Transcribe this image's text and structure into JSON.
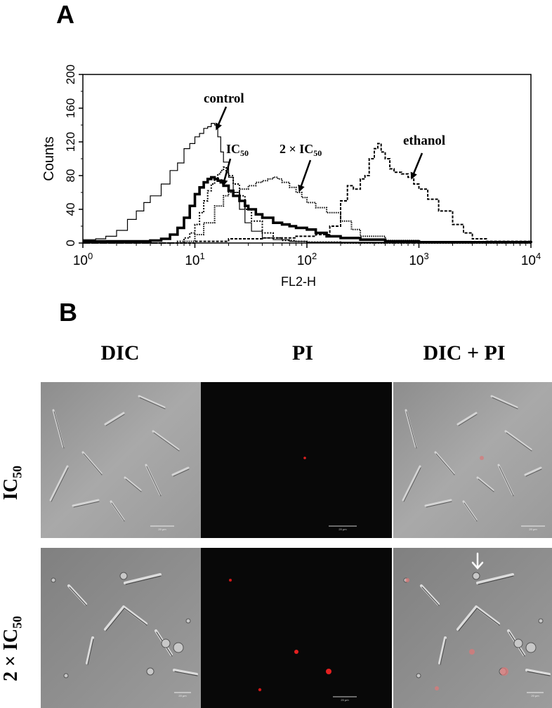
{
  "panel_a": {
    "label": "A"
  },
  "panel_b": {
    "label": "B",
    "columns": [
      "DIC",
      "PI",
      "DIC + PI"
    ],
    "rows": [
      {
        "label_main": "IC",
        "label_sub": "50"
      },
      {
        "label_main": "2 × IC",
        "label_sub": "50"
      }
    ],
    "scale_bar_text": "20 μm"
  },
  "chart_data": {
    "type": "line",
    "x_scale": "log",
    "xlabel": "FL2-H",
    "ylabel": "Counts",
    "xlim": [
      1,
      10000
    ],
    "ylim": [
      0,
      200
    ],
    "x_ticks": [
      {
        "base": "10",
        "exp": "0"
      },
      {
        "base": "10",
        "exp": "1"
      },
      {
        "base": "10",
        "exp": "2"
      },
      {
        "base": "10",
        "exp": "3"
      },
      {
        "base": "10",
        "exp": "4"
      }
    ],
    "y_ticks": [
      "0",
      "40",
      "80",
      "120",
      "160",
      "200"
    ],
    "annotations": [
      {
        "text": "control",
        "sub": ""
      },
      {
        "text": "IC",
        "sub": "50"
      },
      {
        "text": "2 × IC",
        "sub": "50"
      },
      {
        "text": "ethanol",
        "sub": ""
      }
    ],
    "series": [
      {
        "style": "thin-solid",
        "x": [
          1,
          1.3,
          1.6,
          2,
          2.5,
          3,
          3.5,
          4,
          5,
          6,
          7,
          8,
          9,
          10,
          11,
          12,
          13,
          14,
          15,
          16,
          17,
          18,
          20,
          22,
          25,
          28,
          32,
          40,
          50,
          70,
          100,
          200,
          500,
          1000,
          10000
        ],
        "y": [
          4,
          5,
          8,
          15,
          28,
          38,
          48,
          56,
          70,
          86,
          95,
          112,
          118,
          126,
          130,
          136,
          138,
          142,
          140,
          126,
          108,
          96,
          78,
          60,
          40,
          24,
          14,
          6,
          4,
          2,
          1,
          1,
          1,
          0,
          0
        ]
      },
      {
        "style": "thick-solid",
        "x": [
          1,
          2,
          4,
          5,
          6,
          7,
          8,
          9,
          10,
          11,
          12,
          13,
          14,
          15,
          16,
          17,
          18,
          20,
          22,
          25,
          28,
          30,
          35,
          40,
          50,
          60,
          70,
          80,
          100,
          120,
          150,
          200,
          300,
          500,
          1000,
          10000
        ],
        "y": [
          2,
          2,
          3,
          5,
          10,
          18,
          30,
          44,
          58,
          66,
          72,
          76,
          78,
          76,
          74,
          72,
          68,
          62,
          56,
          50,
          44,
          40,
          34,
          30,
          24,
          22,
          20,
          18,
          16,
          12,
          8,
          6,
          4,
          2,
          1,
          0
        ]
      },
      {
        "style": "dotted",
        "x": [
          1,
          5,
          7,
          8,
          9,
          10,
          11,
          12,
          13,
          14,
          15,
          16,
          17,
          18,
          19,
          20,
          22,
          25,
          28,
          32,
          40,
          50,
          60,
          80,
          100,
          200,
          10000
        ],
        "y": [
          0,
          0,
          2,
          6,
          12,
          22,
          36,
          50,
          62,
          70,
          76,
          82,
          86,
          90,
          84,
          80,
          70,
          56,
          40,
          26,
          12,
          6,
          3,
          2,
          1,
          0,
          0
        ]
      },
      {
        "style": "dotted-dense",
        "x": [
          1,
          5,
          8,
          10,
          12,
          15,
          18,
          20,
          25,
          30,
          35,
          40,
          45,
          50,
          55,
          60,
          70,
          80,
          90,
          100,
          120,
          150,
          200,
          250,
          300,
          500,
          1000,
          10000
        ],
        "y": [
          0,
          0,
          2,
          10,
          24,
          44,
          56,
          60,
          64,
          68,
          72,
          74,
          76,
          78,
          76,
          72,
          66,
          60,
          54,
          48,
          42,
          36,
          26,
          16,
          8,
          3,
          1,
          0
        ]
      },
      {
        "style": "dashed",
        "x": [
          1,
          10,
          20,
          40,
          80,
          120,
          160,
          200,
          230,
          260,
          300,
          330,
          360,
          400,
          430,
          460,
          500,
          550,
          600,
          700,
          800,
          900,
          1000,
          1200,
          1500,
          2000,
          2500,
          3000,
          4000,
          10000
        ],
        "y": [
          0,
          2,
          5,
          6,
          8,
          10,
          20,
          50,
          68,
          64,
          76,
          80,
          100,
          112,
          118,
          108,
          100,
          88,
          84,
          82,
          78,
          70,
          64,
          52,
          38,
          22,
          12,
          5,
          2,
          0
        ]
      }
    ]
  }
}
